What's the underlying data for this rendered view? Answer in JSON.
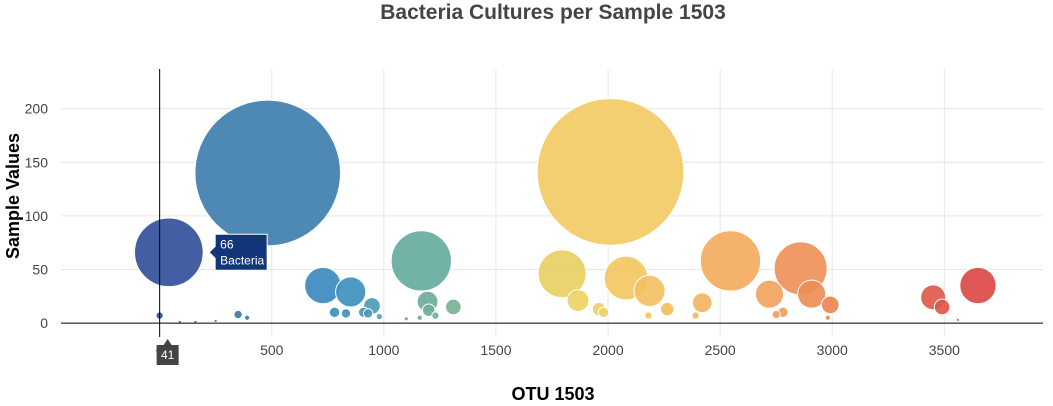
{
  "chart_data": {
    "type": "scatter",
    "subtype": "bubble",
    "title": "Bacteria Cultures per Sample 1503",
    "xlabel": "OTU 1503",
    "ylabel": "Sample Values",
    "xlim": [
      -440,
      3940
    ],
    "ylim": [
      -13,
      237
    ],
    "xticks": [
      0,
      500,
      1000,
      1500,
      2000,
      2500,
      3000,
      3500
    ],
    "xtick_labels": [
      "0",
      "500",
      "1000",
      "1500",
      "2000",
      "2500",
      "3000",
      "3500"
    ],
    "yticks": [
      0,
      50,
      100,
      150,
      200
    ],
    "ytick_labels": [
      "0",
      "50",
      "100",
      "150",
      "200"
    ],
    "grid": true,
    "colorscale": "Earth",
    "points": [
      {
        "x": 0,
        "y": 7,
        "color": "#2f5496"
      },
      {
        "x": 41,
        "y": 66,
        "color": "#33509a"
      },
      {
        "x": 90,
        "y": 1,
        "color": "#3a60a0"
      },
      {
        "x": 160,
        "y": 1,
        "color": "#3a6aa5"
      },
      {
        "x": 250,
        "y": 2,
        "color": "#3a70aa"
      },
      {
        "x": 350,
        "y": 8,
        "color": "#3a78ad"
      },
      {
        "x": 390,
        "y": 5,
        "color": "#3a7cb0"
      },
      {
        "x": 482,
        "y": 140,
        "color": "#3f7fb0"
      },
      {
        "x": 728,
        "y": 35,
        "color": "#3a8bbf"
      },
      {
        "x": 780,
        "y": 10,
        "color": "#3a8fc0"
      },
      {
        "x": 831,
        "y": 9,
        "color": "#3e90bf"
      },
      {
        "x": 852,
        "y": 29,
        "color": "#3e92bf"
      },
      {
        "x": 910,
        "y": 10,
        "color": "#4595be"
      },
      {
        "x": 930,
        "y": 9,
        "color": "#4a98bd"
      },
      {
        "x": 947,
        "y": 16,
        "color": "#4e9bbb"
      },
      {
        "x": 980,
        "y": 6,
        "color": "#58a0b5"
      },
      {
        "x": 1100,
        "y": 4,
        "color": "#5ea5aa"
      },
      {
        "x": 1160,
        "y": 5,
        "color": "#64a9a5"
      },
      {
        "x": 1167,
        "y": 58,
        "color": "#66ab9f"
      },
      {
        "x": 1195,
        "y": 20,
        "color": "#6cae9a"
      },
      {
        "x": 1200,
        "y": 12,
        "color": "#6caf98"
      },
      {
        "x": 1230,
        "y": 7,
        "color": "#70b095"
      },
      {
        "x": 1310,
        "y": 15,
        "color": "#78b293"
      },
      {
        "x": 1795,
        "y": 46,
        "color": "#e8d063"
      },
      {
        "x": 1866,
        "y": 21,
        "color": "#eed264"
      },
      {
        "x": 1960,
        "y": 13,
        "color": "#f0d066"
      },
      {
        "x": 1980,
        "y": 10,
        "color": "#f0d068"
      },
      {
        "x": 2011,
        "y": 141,
        "color": "#f3cb65"
      },
      {
        "x": 2080,
        "y": 42,
        "color": "#f3c862"
      },
      {
        "x": 2180,
        "y": 7,
        "color": "#f3c462"
      },
      {
        "x": 2185,
        "y": 30,
        "color": "#f3c163"
      },
      {
        "x": 2264,
        "y": 13,
        "color": "#f3bd62"
      },
      {
        "x": 2390,
        "y": 7,
        "color": "#f3b862"
      },
      {
        "x": 2420,
        "y": 19,
        "color": "#f3b562"
      },
      {
        "x": 2546,
        "y": 58,
        "color": "#f3ab60"
      },
      {
        "x": 2720,
        "y": 27,
        "color": "#f2a45e"
      },
      {
        "x": 2750,
        "y": 8,
        "color": "#f2a25e"
      },
      {
        "x": 2780,
        "y": 10,
        "color": "#f29e5c"
      },
      {
        "x": 2859,
        "y": 51,
        "color": "#ef935a"
      },
      {
        "x": 2908,
        "y": 27,
        "color": "#ee8d58"
      },
      {
        "x": 2980,
        "y": 5,
        "color": "#ec8a56"
      },
      {
        "x": 2991,
        "y": 17,
        "color": "#ec8656"
      },
      {
        "x": 3450,
        "y": 24,
        "color": "#e05a4d"
      },
      {
        "x": 3490,
        "y": 15,
        "color": "#df564a"
      },
      {
        "x": 3560,
        "y": 3,
        "color": "#dd5248"
      },
      {
        "x": 3650,
        "y": 35,
        "color": "#dc4a46"
      }
    ],
    "hover": {
      "x_value": "41",
      "y_value": "66",
      "text": "Bacteria",
      "x_label_bg": "#444444",
      "label_bg": "#13357a"
    }
  }
}
